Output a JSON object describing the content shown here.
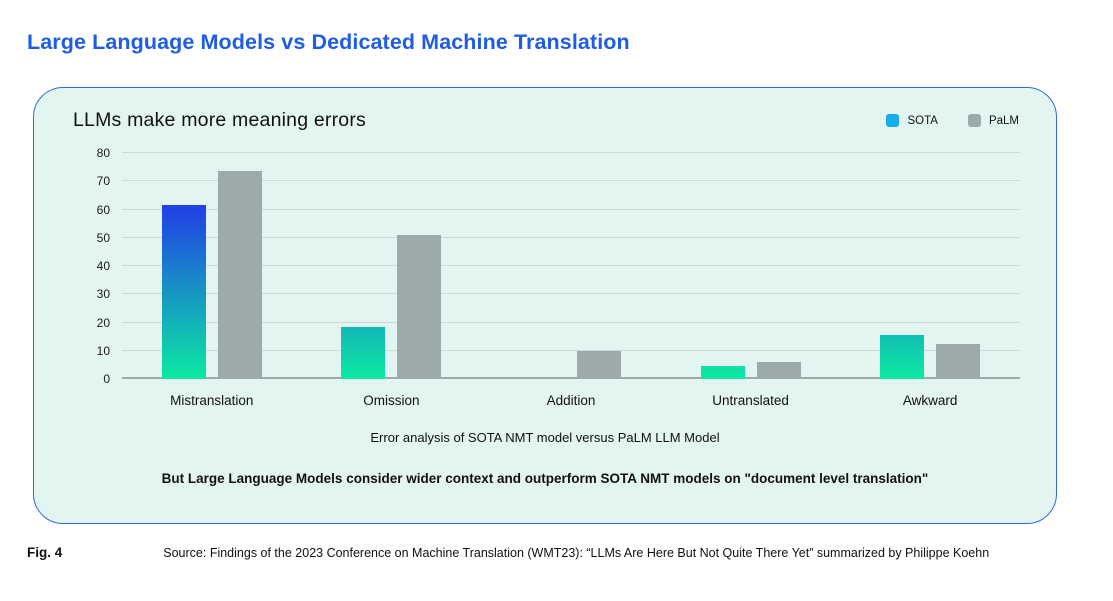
{
  "page": {
    "title": "Large Language Models vs Dedicated Machine Translation",
    "fig_label": "Fig. 4",
    "source": "Source: Findings of the 2023 Conference on Machine Translation (WMT23): “LLMs Are Here But Not Quite There Yet” summarized by Philippe Koehn"
  },
  "card": {
    "chart_title": "LLMs make more meaning errors",
    "caption": "Error analysis of SOTA NMT model versus PaLM LLM Model",
    "takeaway": "But Large Language Models consider wider context and outperform SOTA NMT models on \"document level translation\""
  },
  "legend": [
    {
      "label": "SOTA",
      "color": "#16adec"
    },
    {
      "label": "PaLM",
      "color": "#9caaa9"
    }
  ],
  "chart_data": {
    "type": "bar",
    "title": "LLMs make more meaning errors",
    "xlabel": "Error analysis of SOTA NMT model versus PaLM LLM Model",
    "ylabel": "",
    "categories": [
      "Mistranslation",
      "Omission",
      "Addition",
      "Untranslated",
      "Awkward"
    ],
    "series": [
      {
        "name": "SOTA",
        "values": [
          61.5,
          18.5,
          0,
          4.5,
          15.5
        ]
      },
      {
        "name": "PaLM",
        "values": [
          73.5,
          51,
          10,
          6,
          12.3
        ]
      }
    ],
    "ylim": [
      0,
      80
    ],
    "ytick_interval": 10,
    "grid": true,
    "legend_position": "top-right"
  },
  "colors": {
    "accent_blue": "#1f5ce8",
    "card_border": "#2f6be6",
    "card_background": "#e2f5f1",
    "gridline": "#cbdad6",
    "axis_line": "#9daaa8",
    "palm_bar": "#9caaa9",
    "sota_gradient_top": "#2334ea",
    "sota_gradient_bottom": "#0ceaa2",
    "legend_sota": "#16adec"
  }
}
